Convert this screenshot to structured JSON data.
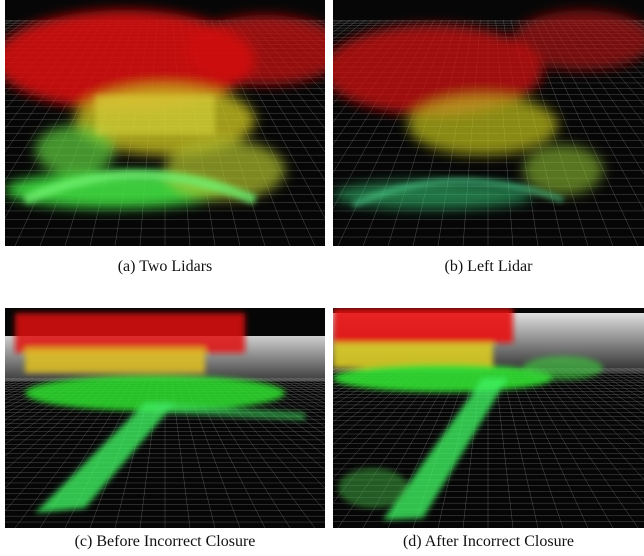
{
  "figure": {
    "panels": [
      {
        "caption": "(a) Two Lidars"
      },
      {
        "caption": "(b) Left Lidar"
      },
      {
        "caption": "(c) Before Incorrect Closure"
      },
      {
        "caption": "(d) After Incorrect Closure"
      }
    ]
  }
}
